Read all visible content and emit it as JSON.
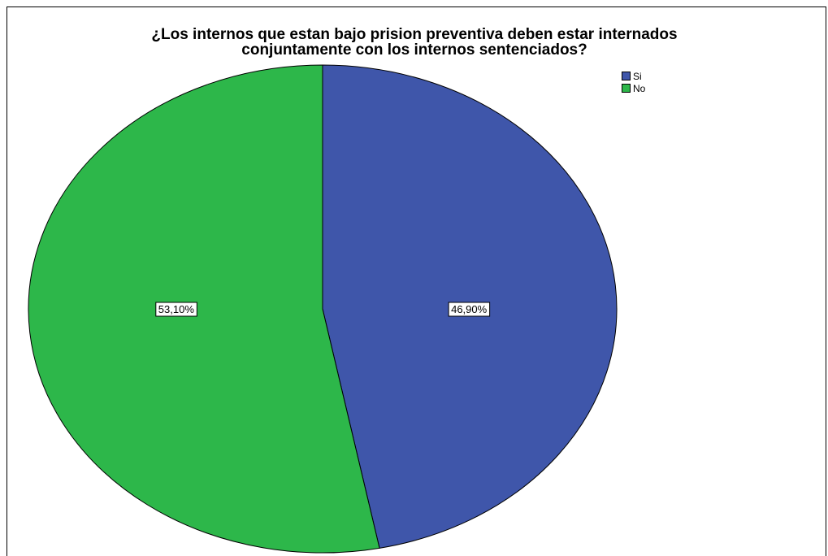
{
  "chart_data": {
    "type": "pie",
    "title": "¿Los internos que estan bajo prision preventiva deben estar internados conjuntamente con los internos sentenciados?",
    "title_lines": [
      "¿Los internos que estan bajo prision preventiva deben estar internados",
      "conjuntamente con los internos sentenciados?"
    ],
    "slices": [
      {
        "name": "Si",
        "value": 46.9,
        "label": "46,90%",
        "color": "#3f56aa"
      },
      {
        "name": "No",
        "value": 53.1,
        "label": "53,10%",
        "color": "#2db74a"
      }
    ],
    "legend_position": "top-right"
  }
}
